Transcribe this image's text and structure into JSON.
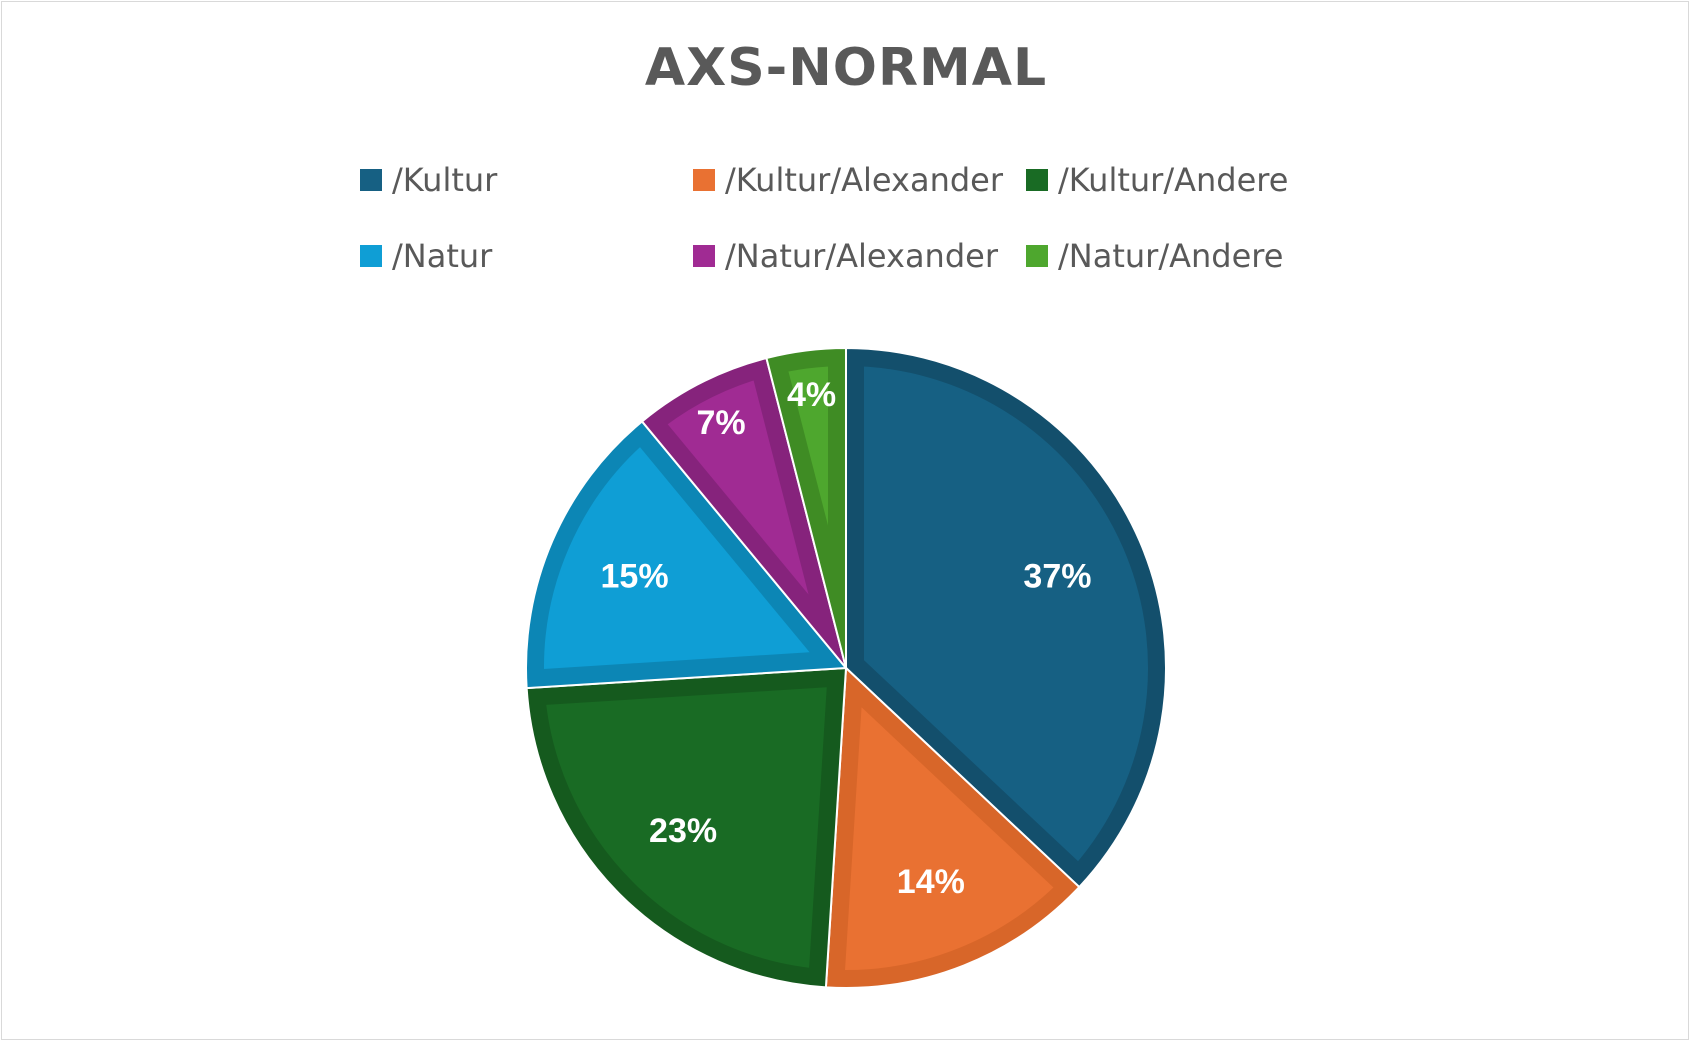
{
  "chart_data": {
    "type": "pie",
    "title": "AXS-NORMAL",
    "legend_position": "top",
    "series": [
      {
        "labels": [
          "/Kultur",
          "/Kultur/Alexander",
          "/Kultur/Andere",
          "/Natur",
          "/Natur/Alexander",
          "/Natur/Andere"
        ],
        "values": [
          37,
          14,
          23,
          15,
          7,
          4
        ],
        "data_labels": [
          "37%",
          "14%",
          "23%",
          "15%",
          "7%",
          "4%"
        ],
        "colors": [
          "#166083",
          "#E97132",
          "#196B24",
          "#0F9ED5",
          "#A02B93",
          "#4EA72E"
        ],
        "border_colors": [
          "#134F6C",
          "#D86629",
          "#155A1E",
          "#0C86B5",
          "#86237C",
          "#3F8C24"
        ]
      }
    ]
  }
}
